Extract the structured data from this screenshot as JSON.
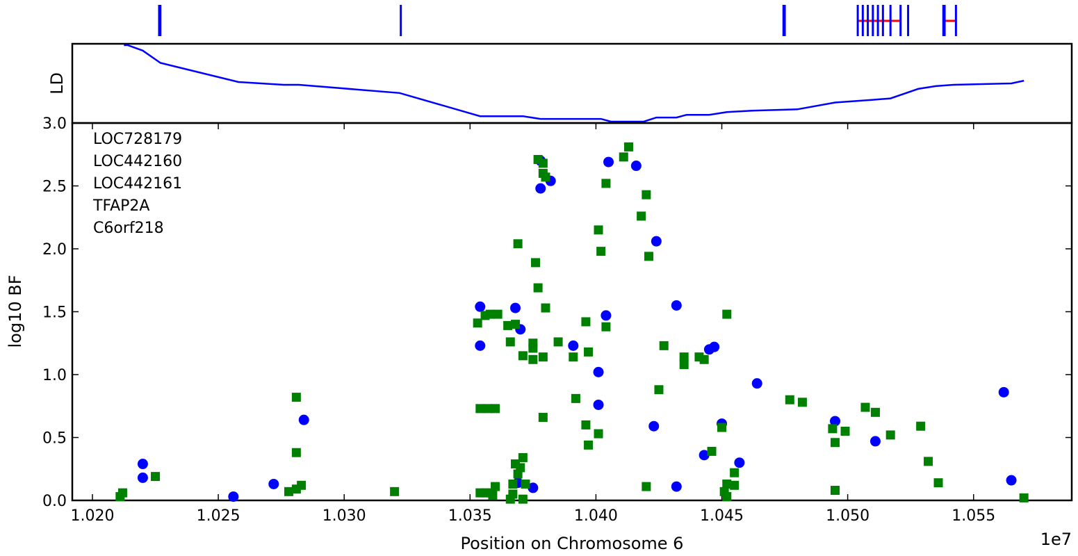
{
  "chart_data": [
    {
      "panel": "genes",
      "type": "gene-track",
      "genes": [
        {
          "exons": [
            1.02265,
            1.0227
          ]
        },
        {
          "exons": [
            1.03225
          ]
        },
        {
          "exons": [
            1.04745,
            1.0475
          ]
        },
        {
          "exons": [
            1.0504,
            1.0506,
            1.0508,
            1.051,
            1.0512,
            1.0514,
            1.0517,
            1.0521
          ],
          "span": [
            1.0504,
            1.0521
          ]
        },
        {
          "exons": [
            1.0524
          ]
        },
        {
          "exons": [
            1.0538,
            1.05385,
            1.0543
          ],
          "span": [
            1.0538,
            1.0543
          ]
        }
      ],
      "colors": {
        "exon": "#0000ff",
        "intron": "#ff0000"
      }
    },
    {
      "panel": "ld",
      "type": "line",
      "ylabel": "LD",
      "xlim": [
        1.0192,
        1.0589
      ],
      "ylim": [
        3.0,
        3.58
      ],
      "line": [
        [
          1.02125,
          3.57
        ],
        [
          1.0214,
          3.57
        ],
        [
          1.022,
          3.53
        ],
        [
          1.0227,
          3.44
        ],
        [
          1.0258,
          3.3
        ],
        [
          1.0276,
          3.28
        ],
        [
          1.0282,
          3.28
        ],
        [
          1.0322,
          3.22
        ],
        [
          1.0354,
          3.05
        ],
        [
          1.0371,
          3.05
        ],
        [
          1.0378,
          3.03
        ],
        [
          1.0402,
          3.03
        ],
        [
          1.0406,
          3.01
        ],
        [
          1.0419,
          3.01
        ],
        [
          1.0424,
          3.04
        ],
        [
          1.0432,
          3.04
        ],
        [
          1.0436,
          3.06
        ],
        [
          1.0445,
          3.06
        ],
        [
          1.0452,
          3.08
        ],
        [
          1.0462,
          3.09
        ],
        [
          1.048,
          3.1
        ],
        [
          1.0495,
          3.15
        ],
        [
          1.051,
          3.17
        ],
        [
          1.0517,
          3.18
        ],
        [
          1.0528,
          3.25
        ],
        [
          1.0535,
          3.27
        ],
        [
          1.0542,
          3.28
        ],
        [
          1.0565,
          3.29
        ],
        [
          1.057,
          3.31
        ]
      ],
      "color": "#0000ff"
    },
    {
      "panel": "bf",
      "type": "scatter",
      "xlabel": "Position on Chromosome 6",
      "ylabel": "log10 BF",
      "x_offset_label": "1e7",
      "xlim": [
        1.0192,
        1.0589
      ],
      "ylim": [
        0.0,
        3.0
      ],
      "xticks": [
        1.02,
        1.025,
        1.03,
        1.035,
        1.04,
        1.045,
        1.05,
        1.055
      ],
      "xtick_labels": [
        "1.020",
        "1.025",
        "1.030",
        "1.035",
        "1.040",
        "1.045",
        "1.050",
        "1.055"
      ],
      "yticks": [
        0.0,
        0.5,
        1.0,
        1.5,
        2.0,
        2.5,
        3.0
      ],
      "ytick_labels": [
        "0.0",
        "0.5",
        "1.0",
        "1.5",
        "2.0",
        "2.5",
        "3.0"
      ],
      "annotations": [
        "LOC728179",
        "LOC442160",
        "LOC442161",
        "TFAP2A",
        "C6orf218"
      ],
      "series": [
        {
          "marker": "circle",
          "color": "#0000ff",
          "points": [
            [
              1.022,
              0.29
            ],
            [
              1.022,
              0.18
            ],
            [
              1.0256,
              0.03
            ],
            [
              1.0272,
              0.13
            ],
            [
              1.0284,
              0.64
            ],
            [
              1.0354,
              1.54
            ],
            [
              1.0354,
              1.23
            ],
            [
              1.0368,
              1.53
            ],
            [
              1.037,
              1.36
            ],
            [
              1.0369,
              0.14
            ],
            [
              1.0375,
              0.1
            ],
            [
              1.0378,
              2.7
            ],
            [
              1.0378,
              2.48
            ],
            [
              1.0382,
              2.54
            ],
            [
              1.0391,
              1.23
            ],
            [
              1.0401,
              1.02
            ],
            [
              1.0401,
              0.76
            ],
            [
              1.0405,
              2.69
            ],
            [
              1.0404,
              1.47
            ],
            [
              1.0416,
              2.66
            ],
            [
              1.0424,
              2.06
            ],
            [
              1.0423,
              0.59
            ],
            [
              1.0432,
              1.55
            ],
            [
              1.0432,
              0.11
            ],
            [
              1.0443,
              0.36
            ],
            [
              1.0445,
              1.2
            ],
            [
              1.0447,
              1.22
            ],
            [
              1.045,
              0.61
            ],
            [
              1.0457,
              0.3
            ],
            [
              1.0464,
              0.93
            ],
            [
              1.0495,
              0.63
            ],
            [
              1.0511,
              0.47
            ],
            [
              1.0562,
              0.86
            ],
            [
              1.0565,
              0.16
            ]
          ]
        },
        {
          "marker": "square",
          "color": "#008000",
          "points": [
            [
              1.0211,
              0.03
            ],
            [
              1.0212,
              0.06
            ],
            [
              1.0225,
              0.19
            ],
            [
              1.0278,
              0.07
            ],
            [
              1.0281,
              0.82
            ],
            [
              1.0281,
              0.38
            ],
            [
              1.0281,
              0.09
            ],
            [
              1.0283,
              0.12
            ],
            [
              1.032,
              0.07
            ],
            [
              1.0353,
              1.41
            ],
            [
              1.0354,
              0.06
            ],
            [
              1.0354,
              0.73
            ],
            [
              1.0356,
              1.47
            ],
            [
              1.0356,
              0.06
            ],
            [
              1.0357,
              0.73
            ],
            [
              1.0358,
              1.48
            ],
            [
              1.0358,
              0.06
            ],
            [
              1.0359,
              0.04
            ],
            [
              1.036,
              0.73
            ],
            [
              1.036,
              0.11
            ],
            [
              1.0361,
              1.48
            ],
            [
              1.0365,
              1.39
            ],
            [
              1.0366,
              1.26
            ],
            [
              1.0366,
              0.01
            ],
            [
              1.0367,
              0.05
            ],
            [
              1.0367,
              0.13
            ],
            [
              1.0368,
              1.4
            ],
            [
              1.0368,
              0.29
            ],
            [
              1.0369,
              2.04
            ],
            [
              1.0369,
              0.21
            ],
            [
              1.037,
              0.26
            ],
            [
              1.0371,
              1.15
            ],
            [
              1.0371,
              0.01
            ],
            [
              1.0371,
              0.34
            ],
            [
              1.0372,
              0.13
            ],
            [
              1.0375,
              1.21
            ],
            [
              1.0375,
              1.25
            ],
            [
              1.0375,
              1.12
            ],
            [
              1.0376,
              1.89
            ],
            [
              1.0377,
              1.69
            ],
            [
              1.0377,
              2.71
            ],
            [
              1.0379,
              1.14
            ],
            [
              1.0379,
              0.66
            ],
            [
              1.0379,
              2.68
            ],
            [
              1.0379,
              2.6
            ],
            [
              1.038,
              1.53
            ],
            [
              1.038,
              2.57
            ],
            [
              1.0385,
              1.26
            ],
            [
              1.0391,
              1.14
            ],
            [
              1.0392,
              0.81
            ],
            [
              1.0396,
              1.42
            ],
            [
              1.0396,
              0.6
            ],
            [
              1.0397,
              1.18
            ],
            [
              1.0397,
              0.44
            ],
            [
              1.0401,
              2.15
            ],
            [
              1.0401,
              0.53
            ],
            [
              1.0402,
              1.98
            ],
            [
              1.0404,
              2.52
            ],
            [
              1.0404,
              1.38
            ],
            [
              1.0411,
              2.73
            ],
            [
              1.0413,
              2.81
            ],
            [
              1.0418,
              2.26
            ],
            [
              1.042,
              2.43
            ],
            [
              1.042,
              0.11
            ],
            [
              1.0421,
              1.94
            ],
            [
              1.0425,
              0.88
            ],
            [
              1.0427,
              1.23
            ],
            [
              1.0435,
              1.08
            ],
            [
              1.0435,
              1.14
            ],
            [
              1.0441,
              1.14
            ],
            [
              1.0443,
              1.12
            ],
            [
              1.0446,
              0.39
            ],
            [
              1.045,
              0.58
            ],
            [
              1.0451,
              0.07
            ],
            [
              1.0452,
              1.48
            ],
            [
              1.0452,
              0.03
            ],
            [
              1.0452,
              0.13
            ],
            [
              1.0455,
              0.22
            ],
            [
              1.0455,
              0.12
            ],
            [
              1.0477,
              0.8
            ],
            [
              1.0482,
              0.78
            ],
            [
              1.0494,
              0.57
            ],
            [
              1.0495,
              0.08
            ],
            [
              1.0495,
              0.46
            ],
            [
              1.0499,
              0.55
            ],
            [
              1.0507,
              0.74
            ],
            [
              1.0511,
              0.7
            ],
            [
              1.0517,
              0.52
            ],
            [
              1.0529,
              0.59
            ],
            [
              1.0532,
              0.31
            ],
            [
              1.0536,
              0.14
            ],
            [
              1.057,
              0.02
            ]
          ]
        }
      ]
    }
  ]
}
